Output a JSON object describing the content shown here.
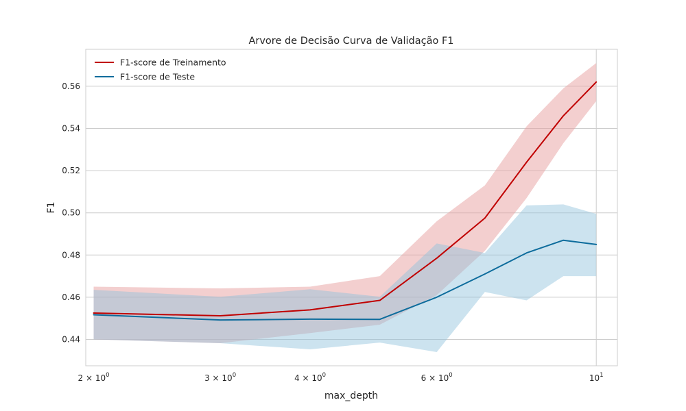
{
  "chart_data": {
    "type": "line",
    "title": "Arvore de Decisão Curva de Validação F1",
    "xlabel": "max_depth",
    "ylabel": "F1",
    "xscale": "log",
    "x": [
      2,
      3,
      4,
      5,
      6,
      7,
      8,
      9,
      10
    ],
    "xlim": [
      1.95,
      10.7
    ],
    "ylim": [
      0.4275,
      0.5775
    ],
    "xticks": [
      {
        "value": 2,
        "base": "2 × 10",
        "exp": "0"
      },
      {
        "value": 3,
        "base": "3 × 10",
        "exp": "0"
      },
      {
        "value": 4,
        "base": "4 × 10",
        "exp": "0"
      },
      {
        "value": 6,
        "base": "6 × 10",
        "exp": "0"
      },
      {
        "value": 10,
        "base": "10",
        "exp": "1"
      }
    ],
    "yticks": [
      "0.44",
      "0.46",
      "0.48",
      "0.50",
      "0.52",
      "0.54",
      "0.56"
    ],
    "grid": true,
    "legend_position": "top-left",
    "series": [
      {
        "name": "F1-score de Treinamento",
        "color": "#c00000",
        "band_color": "#e8a0a0",
        "values": [
          0.4525,
          0.4512,
          0.454,
          0.4585,
          0.4785,
          0.4975,
          0.524,
          0.546,
          0.562
        ],
        "upper": [
          0.465,
          0.4642,
          0.465,
          0.47,
          0.496,
          0.513,
          0.541,
          0.559,
          0.571
        ],
        "lower": [
          0.44,
          0.4382,
          0.443,
          0.447,
          0.461,
          0.482,
          0.507,
          0.533,
          0.553
        ]
      },
      {
        "name": "F1-score de Teste",
        "color": "#0d6c9c",
        "band_color": "#8ec2dc",
        "values": [
          0.4517,
          0.4492,
          0.4496,
          0.4495,
          0.46,
          0.471,
          0.481,
          0.487,
          0.485
        ],
        "upper": [
          0.4635,
          0.4602,
          0.4638,
          0.4602,
          0.4855,
          0.481,
          0.5035,
          0.504,
          0.4995
        ],
        "lower": [
          0.44,
          0.4382,
          0.4353,
          0.4385,
          0.434,
          0.4625,
          0.4585,
          0.47,
          0.47
        ]
      }
    ]
  }
}
